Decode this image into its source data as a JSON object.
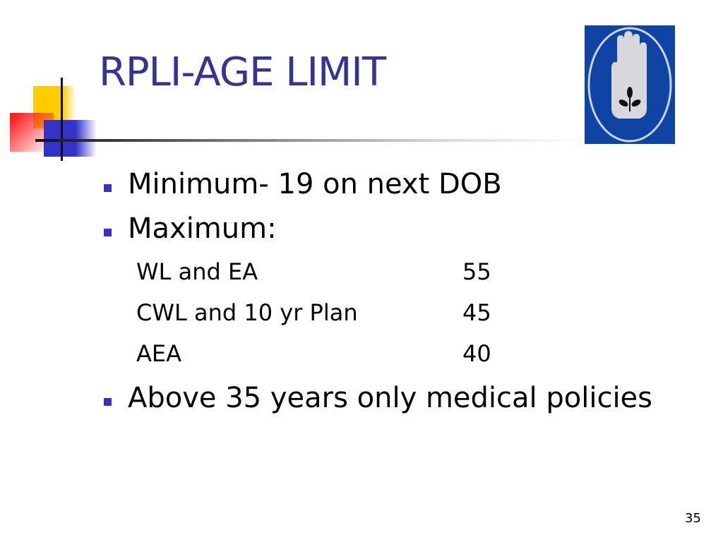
{
  "slide": {
    "title": "RPLI-AGE LIMIT",
    "bullets": [
      {
        "text": "Minimum- 19 on next DOB"
      },
      {
        "text": "Maximum:"
      },
      {
        "text": "Above 35 years only medical policies"
      }
    ],
    "max_limits": [
      {
        "plan": "WL and EA",
        "age": "55"
      },
      {
        "plan": "CWL and 10 yr Plan",
        "age": "45"
      },
      {
        "plan": "AEA",
        "age": "40"
      }
    ],
    "page_number": "35",
    "colors": {
      "title": "#333399",
      "bullet": "#3333cc",
      "logo_bg": "#1044a4"
    },
    "logo_icon": "hand-with-plant-emblem"
  }
}
